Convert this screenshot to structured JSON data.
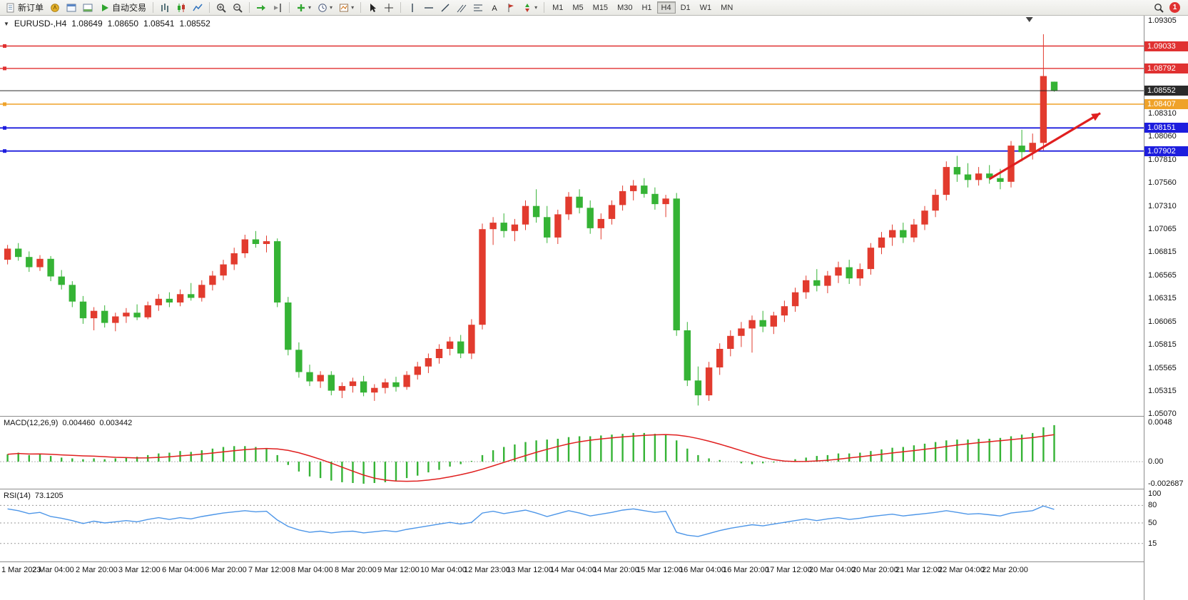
{
  "toolbar": {
    "new_order_label": "新订单",
    "autotrading_label": "自动交易",
    "timeframes": [
      "M1",
      "M5",
      "M15",
      "M30",
      "H1",
      "H4",
      "D1",
      "W1",
      "MN"
    ],
    "active_timeframe": "H4",
    "notification_count": "1",
    "icons": [
      "new-order",
      "market-watch",
      "data-window",
      "terminal",
      "autotrading-play",
      "bar-chart",
      "candlestick-chart",
      "line-chart",
      "zoom-in",
      "zoom-out",
      "auto-scroll",
      "chart-shift",
      "indicators",
      "periods",
      "templates",
      "cursor",
      "crosshair",
      "vertical-line",
      "horizontal-line",
      "trendline",
      "equidistant-channel",
      "fibonacci",
      "text",
      "label-flag",
      "arrows",
      "search",
      "notification"
    ]
  },
  "chart": {
    "symbol_period": "EURUSD-,H4",
    "open": "1.08649",
    "high": "1.08650",
    "low": "1.08541",
    "close": "1.08552"
  },
  "chart_data": {
    "type": "candlestick",
    "title": "EURUSD-,H4",
    "up_color": "#e23b2e",
    "down_color": "#35b335",
    "price_axis": {
      "min": 1.0504,
      "max": 1.0936,
      "ticks": [
        "1.09305",
        "1.08310",
        "1.08060",
        "1.07810",
        "1.07560",
        "1.07310",
        "1.07065",
        "1.06815",
        "1.06565",
        "1.06315",
        "1.06065",
        "1.05815",
        "1.05565",
        "1.05315",
        "1.05070"
      ]
    },
    "price_lines": [
      {
        "price": 1.09033,
        "label": "1.09033",
        "color": "#e03131",
        "width": 1.4,
        "type": "hline"
      },
      {
        "price": 1.08792,
        "label": "1.08792",
        "color": "#e03131",
        "width": 1.4,
        "type": "hline"
      },
      {
        "price": 1.08552,
        "label": "1.08552",
        "color": "#2b2b2b",
        "width": 1,
        "type": "current"
      },
      {
        "price": 1.08407,
        "label": "1.08407",
        "color": "#efa229",
        "width": 1.6,
        "type": "hline"
      },
      {
        "price": 1.08151,
        "label": "1.08151",
        "color": "#1d1dde",
        "width": 1.8,
        "type": "hline"
      },
      {
        "price": 1.07902,
        "label": "1.07902",
        "color": "#1d1dde",
        "width": 1.8,
        "type": "hline"
      }
    ],
    "arrow": {
      "x1_frac": 0.865,
      "price1": 1.076,
      "x2_frac": 0.962,
      "price2": 1.0831,
      "color": "#e01f1f"
    },
    "time_labels": [
      "1 Mar 2023",
      "2 Mar 04:00",
      "2 Mar 20:00",
      "3 Mar 12:00",
      "6 Mar 04:00",
      "6 Mar 20:00",
      "7 Mar 12:00",
      "8 Mar 04:00",
      "8 Mar 20:00",
      "9 Mar 12:00",
      "10 Mar 04:00",
      "12 Mar 23:00",
      "13 Mar 12:00",
      "14 Mar 04:00",
      "14 Mar 20:00",
      "15 Mar 12:00",
      "16 Mar 04:00",
      "16 Mar 20:00",
      "17 Mar 12:00",
      "20 Mar 04:00",
      "20 Mar 20:00",
      "21 Mar 12:00",
      "22 Mar 04:00",
      "22 Mar 20:00"
    ],
    "candles": [
      [
        1.0673,
        1.0689,
        1.0668,
        1.0685
      ],
      [
        1.0685,
        1.0691,
        1.0672,
        1.0676
      ],
      [
        1.0676,
        1.0682,
        1.066,
        1.0665
      ],
      [
        1.0665,
        1.0678,
        1.0661,
        1.0674
      ],
      [
        1.0674,
        1.0677,
        1.065,
        1.0655
      ],
      [
        1.0655,
        1.0662,
        1.0641,
        1.0646
      ],
      [
        1.0646,
        1.065,
        1.0622,
        1.0628
      ],
      [
        1.0628,
        1.0634,
        1.0604,
        1.061
      ],
      [
        1.061,
        1.0622,
        1.0597,
        1.0618
      ],
      [
        1.0618,
        1.0624,
        1.06,
        1.0605
      ],
      [
        1.0605,
        1.0616,
        1.0596,
        1.0612
      ],
      [
        1.0612,
        1.0621,
        1.0605,
        1.0616
      ],
      [
        1.0616,
        1.0625,
        1.0608,
        1.0611
      ],
      [
        1.0611,
        1.0628,
        1.0609,
        1.0624
      ],
      [
        1.0624,
        1.0636,
        1.0618,
        1.0631
      ],
      [
        1.0631,
        1.0638,
        1.0622,
        1.0627
      ],
      [
        1.0627,
        1.0641,
        1.0623,
        1.0636
      ],
      [
        1.0636,
        1.0648,
        1.0629,
        1.0632
      ],
      [
        1.0632,
        1.0651,
        1.0628,
        1.0646
      ],
      [
        1.0646,
        1.0661,
        1.064,
        1.0656
      ],
      [
        1.0656,
        1.0673,
        1.0651,
        1.0668
      ],
      [
        1.0668,
        1.0686,
        1.0662,
        1.068
      ],
      [
        1.068,
        1.07,
        1.0675,
        1.0695
      ],
      [
        1.0695,
        1.0704,
        1.0686,
        1.069
      ],
      [
        1.069,
        1.0699,
        1.0681,
        1.0693
      ],
      [
        1.0693,
        1.0696,
        1.0622,
        1.0627
      ],
      [
        1.0627,
        1.0633,
        1.057,
        1.0576
      ],
      [
        1.0576,
        1.0584,
        1.0546,
        1.0552
      ],
      [
        1.0552,
        1.056,
        1.0537,
        1.0542
      ],
      [
        1.0542,
        1.0553,
        1.0535,
        1.0549
      ],
      [
        1.0549,
        1.0553,
        1.0527,
        1.0532
      ],
      [
        1.0532,
        1.0541,
        1.0524,
        1.0537
      ],
      [
        1.0537,
        1.0546,
        1.053,
        1.0542
      ],
      [
        1.0542,
        1.0548,
        1.0526,
        1.053
      ],
      [
        1.053,
        1.0539,
        1.0521,
        1.0535
      ],
      [
        1.0535,
        1.0545,
        1.0529,
        1.0541
      ],
      [
        1.0541,
        1.0547,
        1.0531,
        1.0536
      ],
      [
        1.0536,
        1.0553,
        1.0533,
        1.0549
      ],
      [
        1.0549,
        1.0563,
        1.0544,
        1.0558
      ],
      [
        1.0558,
        1.0572,
        1.0551,
        1.0567
      ],
      [
        1.0567,
        1.0582,
        1.0561,
        1.0577
      ],
      [
        1.0577,
        1.059,
        1.057,
        1.0585
      ],
      [
        1.0585,
        1.0592,
        1.0567,
        1.0572
      ],
      [
        1.0572,
        1.0609,
        1.0566,
        1.0603
      ],
      [
        1.0603,
        1.0712,
        1.0598,
        1.0706
      ],
      [
        1.0706,
        1.0719,
        1.0689,
        1.0713
      ],
      [
        1.0713,
        1.0723,
        1.0697,
        1.0704
      ],
      [
        1.0704,
        1.0717,
        1.0693,
        1.0711
      ],
      [
        1.0711,
        1.0737,
        1.0705,
        1.0731
      ],
      [
        1.0731,
        1.0749,
        1.0713,
        1.0719
      ],
      [
        1.0719,
        1.0731,
        1.0691,
        1.0697
      ],
      [
        1.0697,
        1.0727,
        1.069,
        1.0722
      ],
      [
        1.0722,
        1.0746,
        1.0716,
        1.0741
      ],
      [
        1.0741,
        1.0749,
        1.0723,
        1.0729
      ],
      [
        1.0729,
        1.0737,
        1.0701,
        1.0707
      ],
      [
        1.0707,
        1.0723,
        1.0695,
        1.0717
      ],
      [
        1.0717,
        1.0737,
        1.0711,
        1.0732
      ],
      [
        1.0732,
        1.0753,
        1.0726,
        1.0747
      ],
      [
        1.0747,
        1.0759,
        1.0737,
        1.0753
      ],
      [
        1.0753,
        1.0761,
        1.074,
        1.0744
      ],
      [
        1.0744,
        1.0751,
        1.0727,
        1.0733
      ],
      [
        1.0733,
        1.0743,
        1.0719,
        1.0739
      ],
      [
        1.0739,
        1.0745,
        1.0591,
        1.0597
      ],
      [
        1.0597,
        1.0606,
        1.0537,
        1.0543
      ],
      [
        1.0543,
        1.0558,
        1.0516,
        1.0527
      ],
      [
        1.0527,
        1.0563,
        1.0521,
        1.0557
      ],
      [
        1.0557,
        1.0583,
        1.0549,
        1.0577
      ],
      [
        1.0577,
        1.0597,
        1.0569,
        1.0591
      ],
      [
        1.0591,
        1.0606,
        1.0579,
        1.0599
      ],
      [
        1.0599,
        1.0613,
        1.0573,
        1.0608
      ],
      [
        1.0608,
        1.0618,
        1.0595,
        1.0601
      ],
      [
        1.0601,
        1.0617,
        1.0593,
        1.0613
      ],
      [
        1.0613,
        1.0629,
        1.0606,
        1.0623
      ],
      [
        1.0623,
        1.0643,
        1.0617,
        1.0638
      ],
      [
        1.0638,
        1.0656,
        1.0631,
        1.0651
      ],
      [
        1.0651,
        1.0663,
        1.0639,
        1.0645
      ],
      [
        1.0645,
        1.0661,
        1.0637,
        1.0656
      ],
      [
        1.0656,
        1.0671,
        1.0648,
        1.0665
      ],
      [
        1.0665,
        1.0673,
        1.0647,
        1.0653
      ],
      [
        1.0653,
        1.0669,
        1.0645,
        1.0663
      ],
      [
        1.0663,
        1.0691,
        1.0657,
        1.0686
      ],
      [
        1.0686,
        1.0703,
        1.0679,
        1.0697
      ],
      [
        1.0697,
        1.0711,
        1.0688,
        1.0705
      ],
      [
        1.0705,
        1.0713,
        1.0691,
        1.0697
      ],
      [
        1.0697,
        1.0717,
        1.0692,
        1.0711
      ],
      [
        1.0711,
        1.0731,
        1.0705,
        1.0726
      ],
      [
        1.0726,
        1.0749,
        1.0719,
        1.0743
      ],
      [
        1.0743,
        1.0779,
        1.0737,
        1.0773
      ],
      [
        1.0773,
        1.0785,
        1.0757,
        1.0765
      ],
      [
        1.0765,
        1.0777,
        1.0751,
        1.0759
      ],
      [
        1.0759,
        1.0773,
        1.0753,
        1.0766
      ],
      [
        1.0766,
        1.0775,
        1.0755,
        1.0761
      ],
      [
        1.0761,
        1.0771,
        1.0749,
        1.0757
      ],
      [
        1.0757,
        1.0801,
        1.0751,
        1.0796
      ],
      [
        1.0796,
        1.0813,
        1.0779,
        1.0789
      ],
      [
        1.0789,
        1.0809,
        1.0781,
        1.0799
      ],
      [
        1.0799,
        1.0916,
        1.0791,
        1.0871
      ],
      [
        1.08649,
        1.0865,
        1.08541,
        1.08552
      ]
    ],
    "macd": {
      "title": "MACD(12,26,9)",
      "value_main": "0.004460",
      "value_signal": "0.003442",
      "axis_ticks": [
        "0.0048",
        "0.00",
        "-0.002687"
      ],
      "max": 0.0048,
      "min": -0.002687,
      "bar_color": "#35b335",
      "signal_color": "#e01f1f",
      "histogram": [
        0.0009,
        0.0011,
        0.0008,
        0.001,
        0.0007,
        0.0005,
        0.0004,
        0.0003,
        0.0004,
        0.0003,
        0.0004,
        0.0005,
        0.0006,
        0.0008,
        0.001,
        0.0011,
        0.0013,
        0.0012,
        0.0014,
        0.0016,
        0.0018,
        0.0019,
        0.0019,
        0.0018,
        0.0016,
        0.0008,
        -0.0004,
        -0.0012,
        -0.0018,
        -0.002,
        -0.0023,
        -0.0025,
        -0.0026,
        -0.00269,
        -0.0026,
        -0.0025,
        -0.0023,
        -0.002,
        -0.0017,
        -0.0013,
        -0.001,
        -0.0006,
        -0.0003,
        0.0001,
        0.0008,
        0.0014,
        0.0018,
        0.0021,
        0.0024,
        0.0026,
        0.0027,
        0.0028,
        0.003,
        0.0031,
        0.0031,
        0.0032,
        0.0033,
        0.0034,
        0.0035,
        0.0035,
        0.0034,
        0.0033,
        0.0026,
        0.0016,
        0.0008,
        0.0004,
        0.0002,
        0.0,
        -0.0002,
        -0.0003,
        -0.0002,
        -0.0001,
        0.0001,
        0.0003,
        0.0005,
        0.0007,
        0.0008,
        0.001,
        0.001,
        0.0011,
        0.0013,
        0.0015,
        0.0017,
        0.0018,
        0.002,
        0.0022,
        0.0024,
        0.0026,
        0.0027,
        0.0027,
        0.0028,
        0.0028,
        0.0029,
        0.0031,
        0.0033,
        0.0035,
        0.0042,
        0.00446
      ]
    },
    "rsi": {
      "title": "RSI(14)",
      "value": "73.1205",
      "levels": [
        100,
        80,
        50,
        15
      ],
      "line_color": "#4d96e8",
      "values": [
        74,
        71,
        66,
        68,
        61,
        58,
        54,
        49,
        53,
        50,
        52,
        54,
        52,
        56,
        59,
        56,
        59,
        57,
        61,
        64,
        67,
        69,
        71,
        69,
        70,
        55,
        44,
        38,
        34,
        36,
        33,
        35,
        36,
        33,
        35,
        37,
        35,
        39,
        42,
        45,
        48,
        51,
        48,
        51,
        67,
        70,
        66,
        69,
        72,
        67,
        61,
        66,
        71,
        67,
        62,
        65,
        68,
        72,
        74,
        71,
        68,
        70,
        34,
        29,
        27,
        32,
        37,
        41,
        44,
        47,
        45,
        48,
        51,
        54,
        57,
        54,
        57,
        59,
        56,
        58,
        61,
        63,
        65,
        62,
        64,
        66,
        68,
        71,
        68,
        65,
        66,
        64,
        62,
        67,
        69,
        71,
        79,
        73.12
      ]
    }
  }
}
